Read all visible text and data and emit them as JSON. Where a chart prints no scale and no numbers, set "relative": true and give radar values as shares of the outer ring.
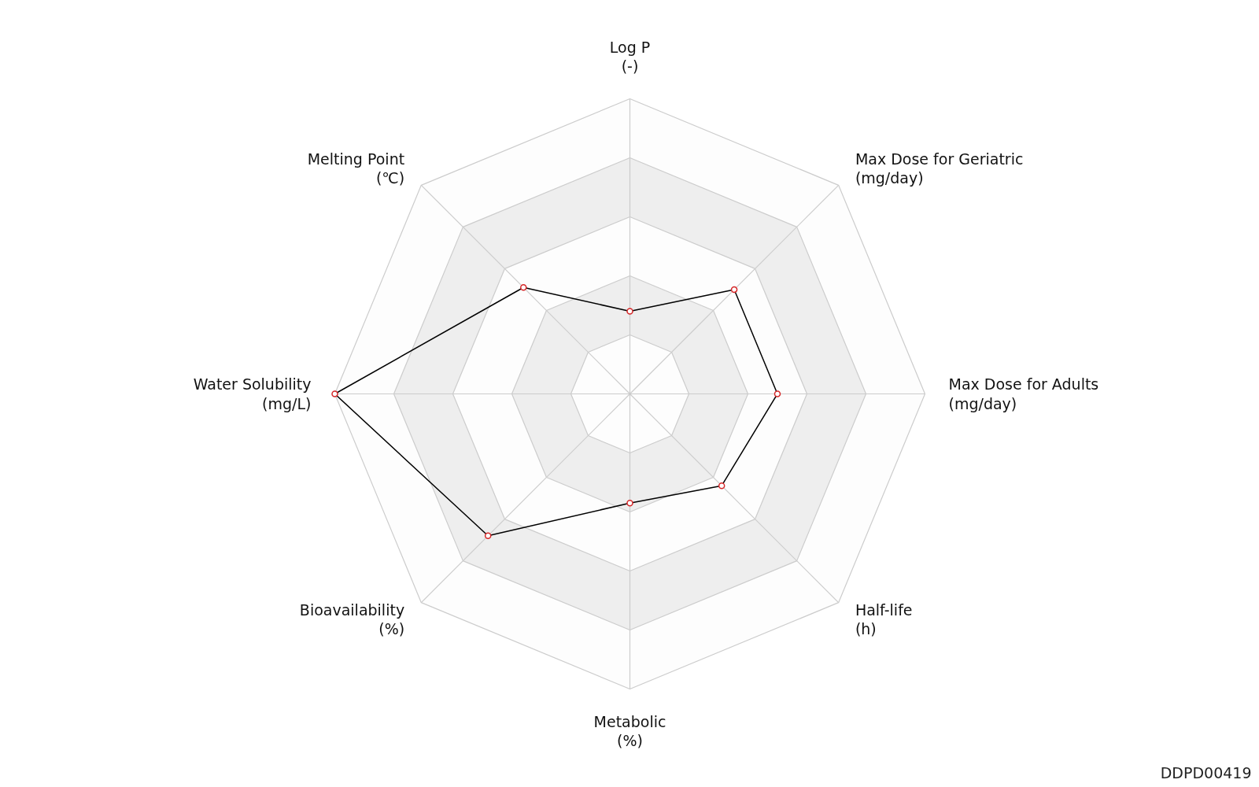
{
  "chart_data": {
    "type": "radar",
    "relative": true,
    "categories": [
      "Log P\n(-)",
      "Max Dose for Geriatric\n(mg/day)",
      "Max Dose for Adults\n(mg/day)",
      "Half-life\n(h)",
      "Metabolic\n(%)",
      "Bioavailability\n(%)",
      "Water Solubility\n(mg/L)",
      "Melting Point\n(℃)"
    ],
    "series": [
      {
        "color": "#000000",
        "values": [
          0.28,
          0.5,
          0.5,
          0.44,
          0.37,
          0.68,
          1.0,
          0.51
        ]
      }
    ],
    "marker": "circle",
    "line_style": "solid",
    "grid": true,
    "annotations": [
      "DDPD00419"
    ]
  }
}
